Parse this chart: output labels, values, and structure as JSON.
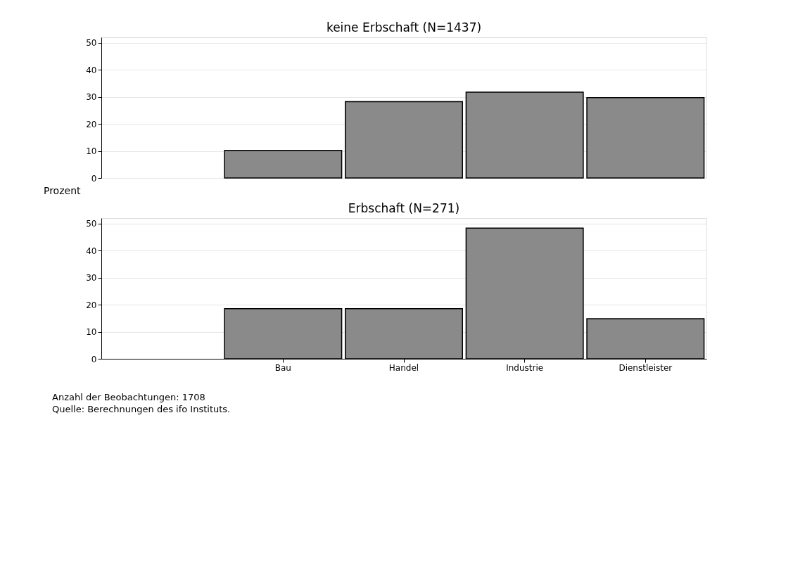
{
  "chart_data": [
    {
      "type": "bar",
      "title": "keine Erbschaft (N=1437)",
      "ylabel": "Prozent",
      "categories": [
        null,
        null,
        null,
        null,
        null
      ],
      "series": [
        {
          "color": "#8a8a8a",
          "values": [
            null,
            10.2,
            28.2,
            31.7,
            29.7
          ]
        }
      ],
      "ylim": [
        0,
        52
      ],
      "yticks": [
        0,
        10,
        20,
        30,
        40,
        50
      ],
      "grid": "y",
      "tick_labels": "y"
    },
    {
      "type": "bar",
      "title": "Erbschaft (N=271)",
      "categories": [
        null,
        "Bau",
        "Handel",
        "Industrie",
        "Dienstleister"
      ],
      "series": [
        {
          "color": "#8a8a8a",
          "values": [
            null,
            18.5,
            18.5,
            48.3,
            14.8
          ]
        }
      ],
      "ylim": [
        0,
        52
      ],
      "yticks": [
        0,
        10,
        20,
        30,
        40,
        50
      ],
      "grid": "y",
      "annotations": [
        "Anzahl der Beobachtungen: 1708",
        "Quelle: Berechnungen des ifo Instituts."
      ]
    }
  ]
}
